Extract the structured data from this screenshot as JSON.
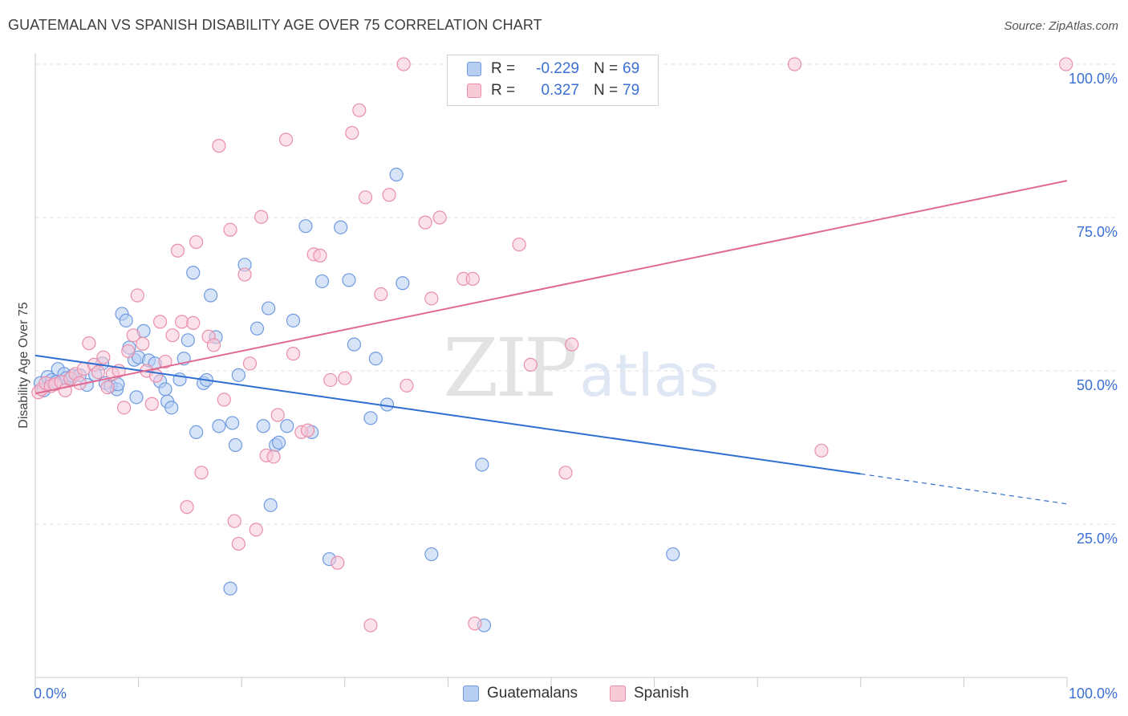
{
  "header": {
    "title": "GUATEMALAN VS SPANISH DISABILITY AGE OVER 75 CORRELATION CHART",
    "source": "Source: ZipAtlas.com"
  },
  "legend": {
    "rows": [
      {
        "r_label": "R =",
        "r_value": "-0.229",
        "n_label": "N =",
        "n_value": "69"
      },
      {
        "r_label": "R =",
        "r_value": "0.327",
        "n_label": "N =",
        "n_value": "79"
      }
    ]
  },
  "bottom_legend": {
    "series1": "Guatemalans",
    "series2": "Spanish"
  },
  "watermark": {
    "zip": "ZIP",
    "atlas": "atlas"
  },
  "colors": {
    "blue_fill": "#b7cef3",
    "blue_stroke": "#6f9ae0",
    "blue_line": "#2f6fd1",
    "pink_fill": "#f8c9d7",
    "pink_stroke": "#e98fab",
    "pink_line": "#e06a94",
    "axis_text": "#3b6fd4"
  },
  "chart_data": {
    "type": "scatter",
    "title": "GUATEMALAN VS SPANISH DISABILITY AGE OVER 75 CORRELATION CHART",
    "xlabel": "",
    "ylabel": "Disability Age Over 75",
    "xlim": [
      0,
      100
    ],
    "ylim": [
      0,
      100
    ],
    "x_tick_labels": [
      "0.0%",
      "100.0%"
    ],
    "y_ticks": [
      25,
      50,
      75,
      100
    ],
    "y_tick_labels": [
      "25.0%",
      "50.0%",
      "75.0%",
      "100.0%"
    ],
    "grid": true,
    "series": [
      {
        "name": "Guatemalans",
        "r": -0.229,
        "n": 69,
        "trend": {
          "x0": 0,
          "y0": 52.5,
          "x1": 80,
          "y1": 33.2,
          "dash_to_x": 100,
          "dash_to_y": 28.3
        },
        "points": [
          [
            0.5,
            48.0
          ],
          [
            0.8,
            46.8
          ],
          [
            1.2,
            49.0
          ],
          [
            1.6,
            48.5
          ],
          [
            2.0,
            48.2
          ],
          [
            2.2,
            50.3
          ],
          [
            2.8,
            49.5
          ],
          [
            3.0,
            48.8
          ],
          [
            3.4,
            48.6
          ],
          [
            3.6,
            49.2
          ],
          [
            4.3,
            49.3
          ],
          [
            5.0,
            47.7
          ],
          [
            5.8,
            49.4
          ],
          [
            6.5,
            51.2
          ],
          [
            6.8,
            48.0
          ],
          [
            7.3,
            47.5
          ],
          [
            7.9,
            47.0
          ],
          [
            8.0,
            47.8
          ],
          [
            8.4,
            59.3
          ],
          [
            8.8,
            58.2
          ],
          [
            9.1,
            53.8
          ],
          [
            9.6,
            51.8
          ],
          [
            9.8,
            45.7
          ],
          [
            10.0,
            52.2
          ],
          [
            10.5,
            56.5
          ],
          [
            11.0,
            51.7
          ],
          [
            11.6,
            51.2
          ],
          [
            12.1,
            48.3
          ],
          [
            12.6,
            47.0
          ],
          [
            12.8,
            45.0
          ],
          [
            13.2,
            44.0
          ],
          [
            14.0,
            48.6
          ],
          [
            14.4,
            52.0
          ],
          [
            14.8,
            55.0
          ],
          [
            15.3,
            66.0
          ],
          [
            15.6,
            40.0
          ],
          [
            16.3,
            48.0
          ],
          [
            16.6,
            48.5
          ],
          [
            17.0,
            62.3
          ],
          [
            17.5,
            55.5
          ],
          [
            17.8,
            41.0
          ],
          [
            18.9,
            14.5
          ],
          [
            19.1,
            41.5
          ],
          [
            19.4,
            37.9
          ],
          [
            19.7,
            49.3
          ],
          [
            20.3,
            67.3
          ],
          [
            21.5,
            56.9
          ],
          [
            22.1,
            41.0
          ],
          [
            22.6,
            60.2
          ],
          [
            22.8,
            28.1
          ],
          [
            23.3,
            37.9
          ],
          [
            23.6,
            38.3
          ],
          [
            24.4,
            41.0
          ],
          [
            25.0,
            58.2
          ],
          [
            26.2,
            73.6
          ],
          [
            26.8,
            40.0
          ],
          [
            27.8,
            64.6
          ],
          [
            28.5,
            19.3
          ],
          [
            29.6,
            73.4
          ],
          [
            30.4,
            64.8
          ],
          [
            30.9,
            54.3
          ],
          [
            32.5,
            42.3
          ],
          [
            33.0,
            52.0
          ],
          [
            34.1,
            44.5
          ],
          [
            35.0,
            82.0
          ],
          [
            35.6,
            64.3
          ],
          [
            38.4,
            20.1
          ],
          [
            43.3,
            34.7
          ],
          [
            43.5,
            8.5
          ],
          [
            61.8,
            20.1
          ]
        ]
      },
      {
        "name": "Spanish",
        "r": 0.327,
        "n": 79,
        "trend": {
          "x0": 0,
          "y0": 46.3,
          "x1": 100,
          "y1": 81.0
        },
        "points": [
          [
            0.3,
            46.5
          ],
          [
            0.6,
            47.0
          ],
          [
            1.0,
            48.0
          ],
          [
            1.5,
            47.5
          ],
          [
            1.9,
            47.8
          ],
          [
            2.5,
            48.2
          ],
          [
            2.9,
            46.8
          ],
          [
            3.4,
            48.8
          ],
          [
            3.9,
            49.5
          ],
          [
            4.3,
            48.0
          ],
          [
            4.7,
            50.3
          ],
          [
            5.2,
            54.5
          ],
          [
            5.7,
            51.0
          ],
          [
            6.1,
            49.8
          ],
          [
            6.6,
            52.2
          ],
          [
            7.0,
            47.3
          ],
          [
            7.5,
            49.5
          ],
          [
            8.1,
            50.0
          ],
          [
            8.6,
            44.0
          ],
          [
            9.0,
            53.2
          ],
          [
            9.5,
            55.8
          ],
          [
            9.9,
            62.3
          ],
          [
            10.4,
            54.4
          ],
          [
            10.8,
            50.0
          ],
          [
            11.3,
            44.6
          ],
          [
            11.7,
            49.2
          ],
          [
            12.1,
            58.0
          ],
          [
            12.6,
            51.5
          ],
          [
            13.3,
            55.8
          ],
          [
            13.8,
            69.6
          ],
          [
            14.2,
            58.0
          ],
          [
            14.7,
            27.8
          ],
          [
            15.3,
            57.8
          ],
          [
            15.6,
            71.0
          ],
          [
            16.1,
            33.4
          ],
          [
            16.8,
            55.6
          ],
          [
            17.3,
            54.2
          ],
          [
            17.8,
            86.7
          ],
          [
            18.3,
            45.3
          ],
          [
            18.9,
            73.0
          ],
          [
            19.3,
            25.5
          ],
          [
            19.7,
            21.8
          ],
          [
            20.3,
            65.7
          ],
          [
            20.8,
            51.2
          ],
          [
            21.4,
            24.1
          ],
          [
            21.9,
            75.1
          ],
          [
            22.4,
            36.2
          ],
          [
            23.1,
            36.0
          ],
          [
            23.5,
            42.8
          ],
          [
            24.3,
            87.7
          ],
          [
            25.0,
            52.8
          ],
          [
            25.8,
            40.0
          ],
          [
            26.4,
            40.3
          ],
          [
            27.0,
            69.0
          ],
          [
            27.6,
            68.8
          ],
          [
            28.6,
            48.5
          ],
          [
            29.3,
            18.7
          ],
          [
            30.0,
            48.8
          ],
          [
            30.7,
            88.8
          ],
          [
            31.4,
            92.5
          ],
          [
            32.0,
            78.3
          ],
          [
            32.5,
            8.5
          ],
          [
            33.5,
            62.5
          ],
          [
            34.3,
            78.7
          ],
          [
            35.7,
            100.0
          ],
          [
            36.0,
            47.6
          ],
          [
            37.8,
            74.2
          ],
          [
            38.4,
            61.8
          ],
          [
            39.2,
            75.0
          ],
          [
            41.5,
            65.0
          ],
          [
            42.4,
            65.0
          ],
          [
            42.6,
            8.8
          ],
          [
            46.9,
            70.6
          ],
          [
            48.0,
            51.0
          ],
          [
            51.4,
            33.4
          ],
          [
            52.0,
            54.3
          ],
          [
            73.6,
            100.0
          ],
          [
            76.2,
            37.0
          ],
          [
            99.9,
            100.0
          ]
        ]
      }
    ]
  }
}
